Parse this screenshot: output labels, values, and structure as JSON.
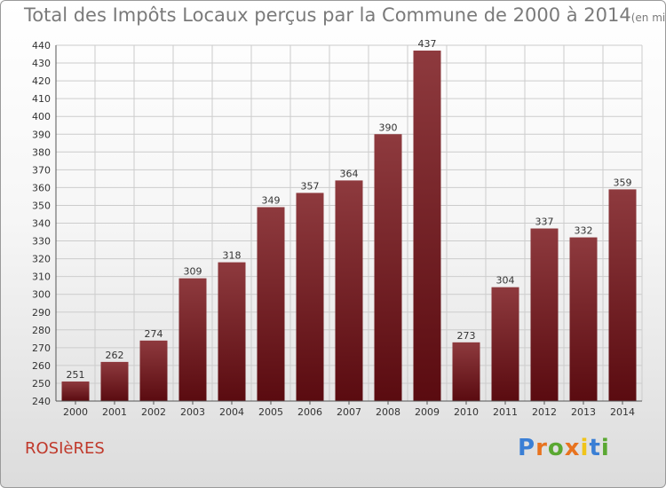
{
  "title": "Total des Impôts Locaux perçus par la Commune de 2000 à 2014",
  "unit_label": "(en milliers d'€)",
  "commune": "ROSIèRES",
  "logo": {
    "letters": [
      "P",
      "r",
      "o",
      "x",
      "i",
      "t",
      "i"
    ],
    "colors": [
      "#3a7fd5",
      "#e8731f",
      "#5aa832",
      "#e8731f",
      "#f0c419",
      "#3a7fd5",
      "#5aa832"
    ]
  },
  "colors": {
    "bar_top": "#8e3a3e",
    "bar_bottom": "#5a0b10",
    "grid": "#cccccc",
    "text": "#333333"
  },
  "chart_data": {
    "type": "bar",
    "categories": [
      "2000",
      "2001",
      "2002",
      "2003",
      "2004",
      "2005",
      "2006",
      "2007",
      "2008",
      "2009",
      "2010",
      "2011",
      "2012",
      "2013",
      "2014"
    ],
    "values": [
      251,
      262,
      274,
      309,
      318,
      349,
      357,
      364,
      390,
      437,
      273,
      304,
      337,
      332,
      359
    ],
    "ylim": [
      240,
      440
    ],
    "yticks": [
      240,
      250,
      260,
      270,
      280,
      290,
      300,
      310,
      320,
      330,
      340,
      350,
      360,
      370,
      380,
      390,
      400,
      410,
      420,
      430,
      440
    ],
    "grid": true,
    "xlabel": "",
    "ylabel": ""
  }
}
